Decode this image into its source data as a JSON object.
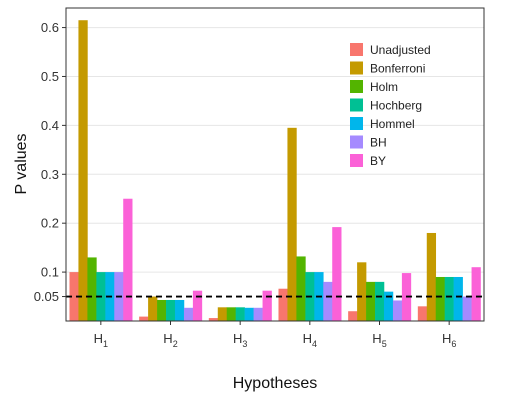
{
  "chart_data": {
    "type": "bar",
    "title": "",
    "xlabel": "Hypotheses",
    "ylabel": "P values",
    "ylim": [
      0.0,
      0.64
    ],
    "yticks": [
      0.1,
      0.2,
      0.3,
      0.4,
      0.5,
      0.6
    ],
    "ytick_labels": [
      "0.1",
      "0.2",
      "0.3",
      "0.4",
      "0.5",
      "0.6"
    ],
    "extra_ytick": {
      "value": 0.05,
      "label": "0.05"
    },
    "reference_line": {
      "value": 0.05,
      "style": "dashed",
      "color": "#000000"
    },
    "categories": [
      {
        "base": "H",
        "sub": "1"
      },
      {
        "base": "H",
        "sub": "2"
      },
      {
        "base": "H",
        "sub": "3"
      },
      {
        "base": "H",
        "sub": "4"
      },
      {
        "base": "H",
        "sub": "5"
      },
      {
        "base": "H",
        "sub": "6"
      }
    ],
    "series": [
      {
        "name": "Unadjusted",
        "color": "#F8766D",
        "values": [
          0.1,
          0.009,
          0.006,
          0.066,
          0.02,
          0.03
        ]
      },
      {
        "name": "Bonferroni",
        "color": "#C49A00",
        "values": [
          0.615,
          0.05,
          0.028,
          0.395,
          0.12,
          0.18
        ]
      },
      {
        "name": "Holm",
        "color": "#53B400",
        "values": [
          0.13,
          0.043,
          0.028,
          0.132,
          0.08,
          0.09
        ]
      },
      {
        "name": "Hochberg",
        "color": "#00C094",
        "values": [
          0.1,
          0.043,
          0.028,
          0.1,
          0.08,
          0.09
        ]
      },
      {
        "name": "Hommel",
        "color": "#00B6EB",
        "values": [
          0.1,
          0.043,
          0.027,
          0.1,
          0.06,
          0.09
        ]
      },
      {
        "name": "BH",
        "color": "#A58AFF",
        "values": [
          0.1,
          0.027,
          0.027,
          0.08,
          0.042,
          0.05
        ]
      },
      {
        "name": "BY",
        "color": "#FB61D7",
        "values": [
          0.25,
          0.062,
          0.062,
          0.192,
          0.098,
          0.11
        ]
      }
    ],
    "grid": true,
    "legend": {
      "position": "top-right"
    }
  }
}
